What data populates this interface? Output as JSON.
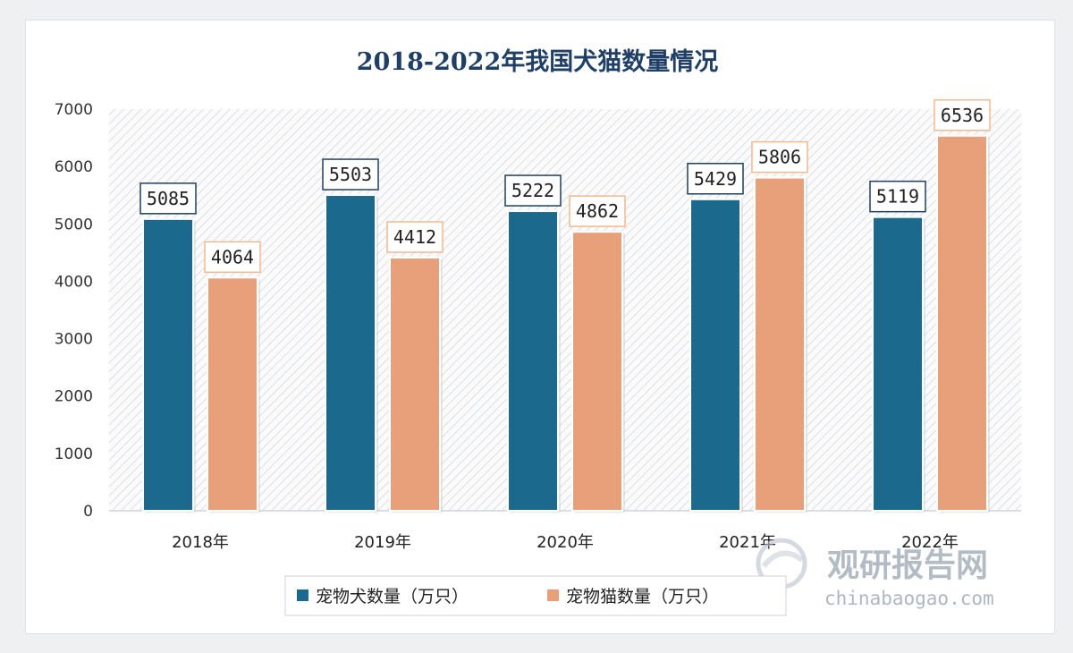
{
  "chart_data": {
    "type": "bar",
    "title": "2018-2022年我国犬猫数量情况",
    "categories": [
      "2018年",
      "2019年",
      "2020年",
      "2021年",
      "2022年"
    ],
    "series": [
      {
        "name": "宠物犬数量（万只）",
        "values": [
          5085,
          5503,
          5222,
          5429,
          5119
        ],
        "color": "#1b6a8e",
        "label_border": "#1f3f5c"
      },
      {
        "name": "宠物猫数量（万只）",
        "values": [
          4064,
          4412,
          4862,
          5806,
          6536
        ],
        "color": "#e8a07a",
        "label_border": "#f0b98f"
      }
    ],
    "yticks": [
      0,
      1000,
      2000,
      3000,
      4000,
      5000,
      6000,
      7000
    ],
    "ylim": [
      0,
      7000
    ],
    "grid": false,
    "legend": "bottom-center",
    "background": "hatched"
  },
  "watermark": {
    "cn": "观研报告网",
    "en": "chinabaogao.com"
  }
}
